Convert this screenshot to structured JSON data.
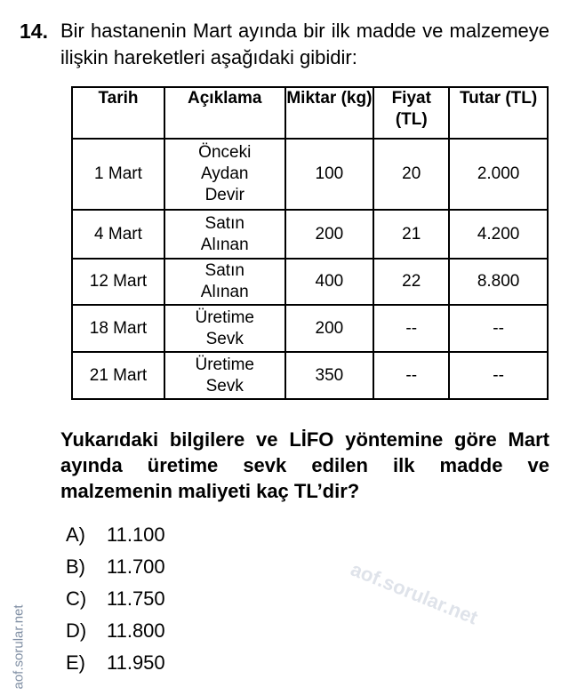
{
  "question": {
    "number": "14.",
    "stem": "Bir hastanenin Mart ayında bir ilk madde ve malzemeye ilişkin hareketleri aşağıdaki gibidir:",
    "table": {
      "headers": [
        "Tarih",
        "Açıklama",
        "Miktar (kg)",
        "Fiyat (TL)",
        "Tutar (TL)"
      ],
      "rows": [
        [
          "1 Mart",
          "Önceki Aydan Devir",
          "100",
          "20",
          "2.000"
        ],
        [
          "4 Mart",
          "Satın Alınan",
          "200",
          "21",
          "4.200"
        ],
        [
          "12 Mart",
          "Satın Alınan",
          "400",
          "22",
          "8.800"
        ],
        [
          "18 Mart",
          "Üretime Sevk",
          "200",
          "--",
          "--"
        ],
        [
          "21 Mart",
          "Üretime Sevk",
          "350",
          "--",
          "--"
        ]
      ]
    },
    "prompt": "Yukarıdaki bilgilere ve LİFO yöntemine göre Mart ayında üretime sevk edilen ilk madde ve malzemenin maliyeti kaç TL’dir?",
    "options": [
      {
        "letter": "A)",
        "value": "11.100"
      },
      {
        "letter": "B)",
        "value": "11.700"
      },
      {
        "letter": "C)",
        "value": "11.750"
      },
      {
        "letter": "D)",
        "value": "11.800"
      },
      {
        "letter": "E)",
        "value": "11.950"
      }
    ]
  },
  "watermark": "aof.sorular.net",
  "side_text": "aof.sorular.net"
}
